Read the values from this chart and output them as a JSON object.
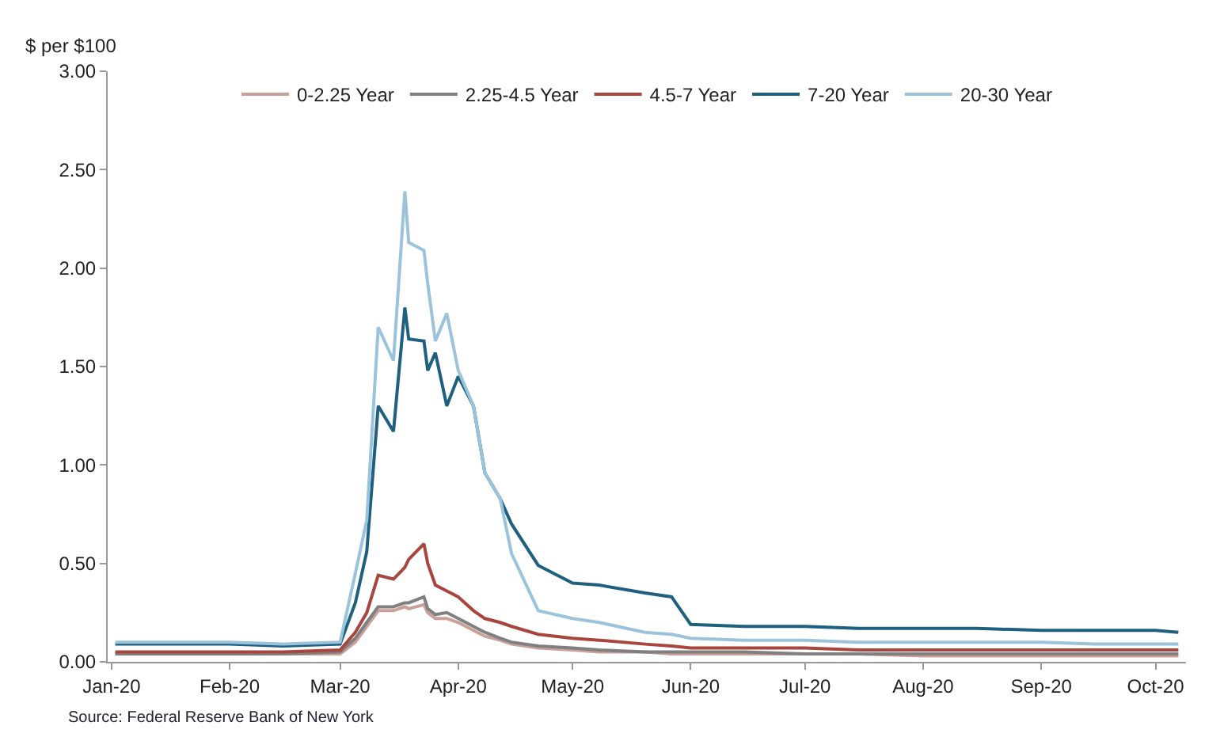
{
  "chart_data": {
    "type": "line",
    "ylabel": "$ per $100",
    "annotations": [
      "Source: Federal Reserve Bank of New York"
    ],
    "x": [
      "2020-01-02",
      "2020-01-15",
      "2020-02-01",
      "2020-02-15",
      "2020-03-01",
      "2020-03-05",
      "2020-03-08",
      "2020-03-11",
      "2020-03-15",
      "2020-03-18",
      "2020-03-19",
      "2020-03-23",
      "2020-03-24",
      "2020-03-26",
      "2020-03-29",
      "2020-04-01",
      "2020-04-05",
      "2020-04-08",
      "2020-04-12",
      "2020-04-15",
      "2020-04-22",
      "2020-05-01",
      "2020-05-08",
      "2020-05-20",
      "2020-05-27",
      "2020-06-01",
      "2020-06-15",
      "2020-07-01",
      "2020-07-15",
      "2020-08-01",
      "2020-08-15",
      "2020-09-01",
      "2020-09-15",
      "2020-10-01",
      "2020-10-07"
    ],
    "series": [
      {
        "name": "0-2.25 Year",
        "color": "#c9a09a",
        "values": [
          0.04,
          0.04,
          0.04,
          0.04,
          0.04,
          0.1,
          0.18,
          0.26,
          0.26,
          0.28,
          0.27,
          0.29,
          0.25,
          0.22,
          0.22,
          0.2,
          0.16,
          0.13,
          0.11,
          0.09,
          0.07,
          0.06,
          0.05,
          0.05,
          0.04,
          0.04,
          0.04,
          0.04,
          0.04,
          0.03,
          0.03,
          0.03,
          0.03,
          0.03,
          0.03
        ]
      },
      {
        "name": "2.25-4.5 Year",
        "color": "#808080",
        "values": [
          0.04,
          0.04,
          0.04,
          0.04,
          0.05,
          0.12,
          0.2,
          0.28,
          0.28,
          0.3,
          0.3,
          0.33,
          0.27,
          0.24,
          0.25,
          0.22,
          0.18,
          0.15,
          0.12,
          0.1,
          0.08,
          0.07,
          0.06,
          0.05,
          0.05,
          0.05,
          0.05,
          0.04,
          0.04,
          0.04,
          0.04,
          0.04,
          0.04,
          0.04,
          0.04
        ]
      },
      {
        "name": "4.5-7 Year",
        "color": "#a8463e",
        "values": [
          0.05,
          0.05,
          0.05,
          0.05,
          0.06,
          0.15,
          0.25,
          0.44,
          0.42,
          0.48,
          0.52,
          0.6,
          0.5,
          0.39,
          0.36,
          0.33,
          0.26,
          0.22,
          0.2,
          0.18,
          0.14,
          0.12,
          0.11,
          0.09,
          0.08,
          0.07,
          0.07,
          0.07,
          0.06,
          0.06,
          0.06,
          0.06,
          0.06,
          0.06,
          0.06
        ]
      },
      {
        "name": "7-20 Year",
        "color": "#1f5f7f",
        "values": [
          0.09,
          0.09,
          0.09,
          0.08,
          0.09,
          0.3,
          0.56,
          1.3,
          1.17,
          1.8,
          1.64,
          1.63,
          1.48,
          1.57,
          1.3,
          1.45,
          1.3,
          0.96,
          0.83,
          0.7,
          0.49,
          0.4,
          0.39,
          0.35,
          0.33,
          0.19,
          0.18,
          0.18,
          0.17,
          0.17,
          0.17,
          0.16,
          0.16,
          0.16,
          0.15
        ]
      },
      {
        "name": "20-30 Year",
        "color": "#9cc3dc",
        "values": [
          0.1,
          0.1,
          0.1,
          0.09,
          0.1,
          0.45,
          0.72,
          1.7,
          1.53,
          2.39,
          2.13,
          2.09,
          1.92,
          1.63,
          1.77,
          1.48,
          1.3,
          0.96,
          0.83,
          0.55,
          0.26,
          0.22,
          0.2,
          0.15,
          0.14,
          0.12,
          0.11,
          0.11,
          0.1,
          0.1,
          0.1,
          0.1,
          0.09,
          0.09,
          0.09
        ]
      }
    ],
    "xlim": [
      "2019-12-31",
      "2020-10-09"
    ],
    "xticks": [
      {
        "value": "2020-01-01",
        "label": "Jan-20"
      },
      {
        "value": "2020-02-01",
        "label": "Feb-20"
      },
      {
        "value": "2020-03-01",
        "label": "Mar-20"
      },
      {
        "value": "2020-04-01",
        "label": "Apr-20"
      },
      {
        "value": "2020-05-01",
        "label": "May-20"
      },
      {
        "value": "2020-06-01",
        "label": "Jun-20"
      },
      {
        "value": "2020-07-01",
        "label": "Jul-20"
      },
      {
        "value": "2020-08-01",
        "label": "Aug-20"
      },
      {
        "value": "2020-09-01",
        "label": "Sep-20"
      },
      {
        "value": "2020-10-01",
        "label": "Oct-20"
      }
    ],
    "ylim": [
      0,
      3
    ],
    "yticks": [
      {
        "value": 0,
        "label": "0.00"
      },
      {
        "value": 0.5,
        "label": "0.50"
      },
      {
        "value": 1,
        "label": "1.00"
      },
      {
        "value": 1.5,
        "label": "1.50"
      },
      {
        "value": 2,
        "label": "2.00"
      },
      {
        "value": 2.5,
        "label": "2.50"
      },
      {
        "value": 3,
        "label": "3.00"
      }
    ],
    "grid": false,
    "legend": "top",
    "marker": "none",
    "line_style": "solid"
  }
}
